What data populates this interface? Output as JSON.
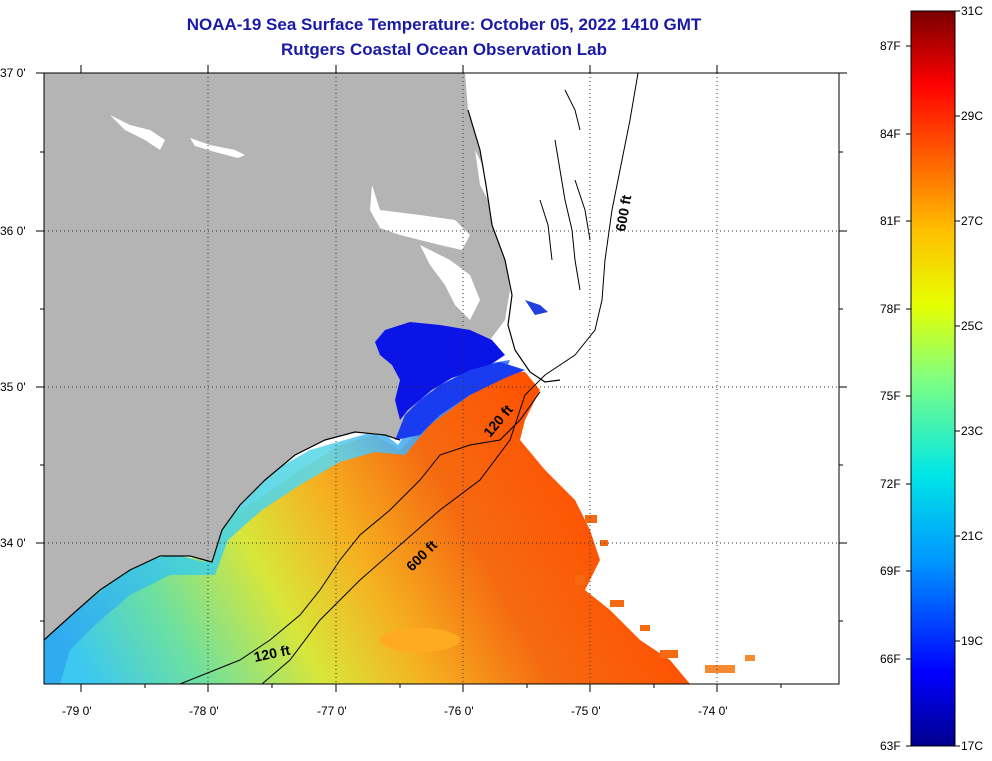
{
  "title_line1": "NOAA-19 Sea Surface Temperature:  October 05, 2022 1410 GMT",
  "title_line2": "Rutgers Coastal Ocean Observation Lab",
  "lat_labels": [
    "37 0'",
    "36 0'",
    "35 0'",
    "34 0'"
  ],
  "lon_labels": [
    "-79 0'",
    "-78 0'",
    "-77 0'",
    "-76 0'",
    "-75 0'",
    "-74 0'"
  ],
  "contour_labels": {
    "c600_north": "600 ft",
    "c120_mid": "120 ft",
    "c600_south": "600 ft",
    "c120_south": "120 ft"
  },
  "colorbar": {
    "fahrenheit": [
      "87F",
      "84F",
      "81F",
      "78F",
      "75F",
      "72F",
      "69F",
      "66F",
      "63F"
    ],
    "celsius": [
      "31C",
      "29C",
      "27C",
      "25C",
      "23C",
      "21C",
      "19C",
      "17C"
    ]
  },
  "colors": {
    "land": "#b4b4b4",
    "title": "#1a1aa6",
    "cold": "#0a14e6",
    "warm": "#ff5a00"
  }
}
